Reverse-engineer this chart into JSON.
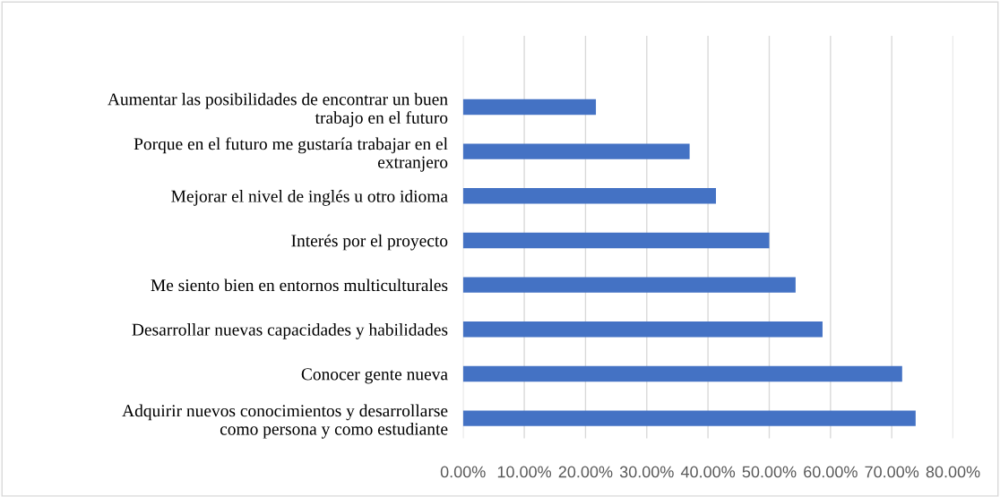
{
  "chart_data": {
    "type": "bar",
    "orientation": "horizontal",
    "categories": [
      "Aumentar las posibilidades de encontrar un buen trabajo en el futuro",
      "Porque en el futuro me gustaría trabajar en el extranjero",
      "Mejorar el nivel de inglés u otro idioma",
      "Interés por el proyecto",
      "Me siento bien en entornos multiculturales",
      "Desarrollar nuevas capacidades y habilidades",
      "Conocer gente nueva",
      "Adquirir nuevos conocimientos y desarrollarse como persona y como estudiante"
    ],
    "values": [
      21.7,
      37.0,
      41.3,
      50.0,
      54.3,
      58.7,
      71.7,
      73.9
    ],
    "color": "#4472c4",
    "xlim": [
      0,
      80
    ],
    "xticks": [
      {
        "value": 0,
        "label": "0.00%"
      },
      {
        "value": 10,
        "label": "10.00%"
      },
      {
        "value": 20,
        "label": "20.00%"
      },
      {
        "value": 30,
        "label": "30.00%"
      },
      {
        "value": 40,
        "label": "40.00%"
      },
      {
        "value": 50,
        "label": "50.00%"
      },
      {
        "value": 60,
        "label": "60.00%"
      },
      {
        "value": 70,
        "label": "70.00%"
      },
      {
        "value": 80,
        "label": "80.00%"
      }
    ],
    "grid": "x",
    "legend": false
  }
}
